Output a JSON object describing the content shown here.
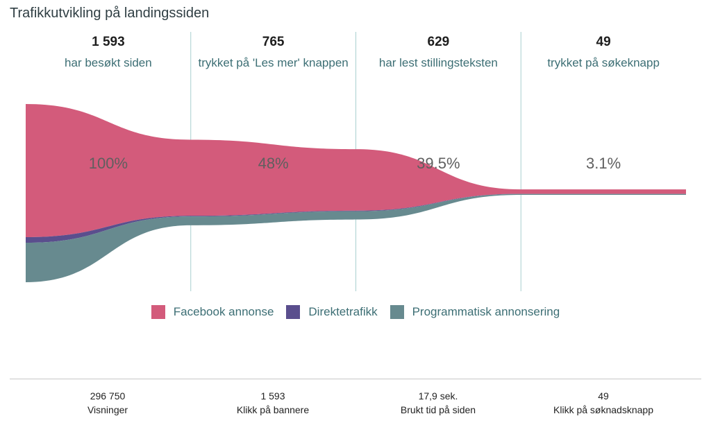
{
  "title": "Trafikkutvikling på landingssiden",
  "colors": {
    "facebook": "#d35b7b",
    "direct": "#5a4e8d",
    "programmatic": "#678a8f",
    "divider": "#a8cfcf"
  },
  "stages": [
    {
      "count": "1 593",
      "label": "har besøkt siden",
      "percent": "100%"
    },
    {
      "count": "765",
      "label": "trykket på 'Les mer' knappen",
      "percent": "48%"
    },
    {
      "count": "629",
      "label": "har lest stillingsteksten",
      "percent": "39.5%"
    },
    {
      "count": "49",
      "label": "trykket på søkeknapp",
      "percent": "3.1%"
    }
  ],
  "legend": [
    {
      "name": "Facebook annonse",
      "color": "#d35b7b"
    },
    {
      "name": "Direktetrafikk",
      "color": "#5a4e8d"
    },
    {
      "name": "Programmatisk annonsering",
      "color": "#678a8f"
    }
  ],
  "metrics": [
    {
      "value": "296 750",
      "label": "Visninger"
    },
    {
      "value": "1 593",
      "label": "Klikk på bannere"
    },
    {
      "value": "17,9 sek.",
      "label": "Brukt tid på siden"
    },
    {
      "value": "49",
      "label": "Klikk på søknadsknapp"
    }
  ],
  "chart_data": {
    "type": "area",
    "title": "Trafikkutvikling på landingssiden",
    "categories": [
      "har besøkt siden",
      "trykket på 'Les mer' knappen",
      "har lest stillingsteksten",
      "trykket på søkeknapp"
    ],
    "totals": [
      1593,
      765,
      629,
      49
    ],
    "percent_labels": [
      "100%",
      "48%",
      "39.5%",
      "3.1%"
    ],
    "series": [
      {
        "name": "Facebook annonse",
        "values": [
          1190,
          680,
          550,
          40
        ]
      },
      {
        "name": "Direktetrafikk",
        "values": [
          50,
          6,
          5,
          1
        ]
      },
      {
        "name": "Programmatisk annonsering",
        "values": [
          353,
          79,
          74,
          8
        ]
      }
    ],
    "legend_position": "bottom-center",
    "grid": false
  }
}
